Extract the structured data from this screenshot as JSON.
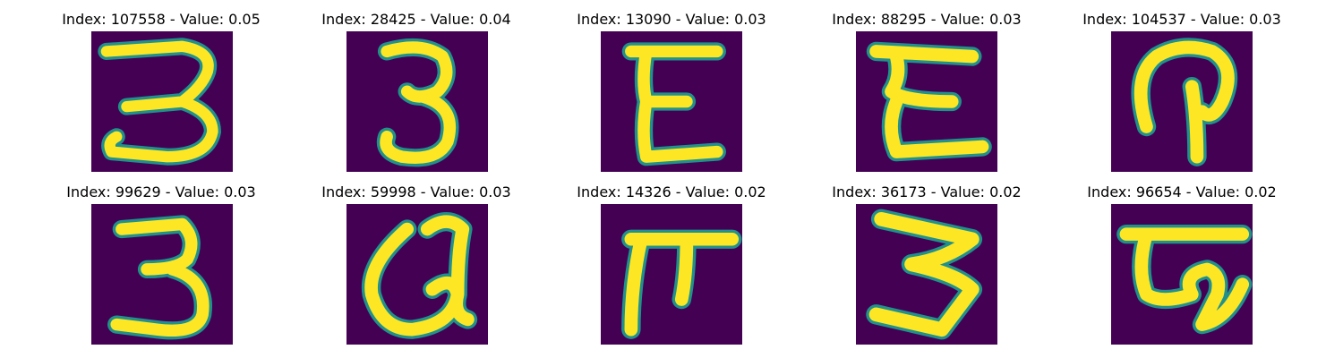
{
  "colors": {
    "background": "#440154",
    "teal": "#21918c",
    "yellow": "#fde725",
    "green": "#5ec962"
  },
  "panels": [
    {
      "title": "Index: 107558 - Value: 0.05"
    },
    {
      "title": "Index: 28425 - Value: 0.04"
    },
    {
      "title": "Index: 13090 - Value: 0.03"
    },
    {
      "title": "Index: 88295 - Value: 0.03"
    },
    {
      "title": "Index: 104537 - Value: 0.03"
    },
    {
      "title": "Index: 99629 - Value: 0.03"
    },
    {
      "title": "Index: 59998 - Value: 0.03"
    },
    {
      "title": "Index: 14326 - Value: 0.02"
    },
    {
      "title": "Index: 36173 - Value: 0.02"
    },
    {
      "title": "Index: 96654 - Value: 0.02"
    }
  ]
}
